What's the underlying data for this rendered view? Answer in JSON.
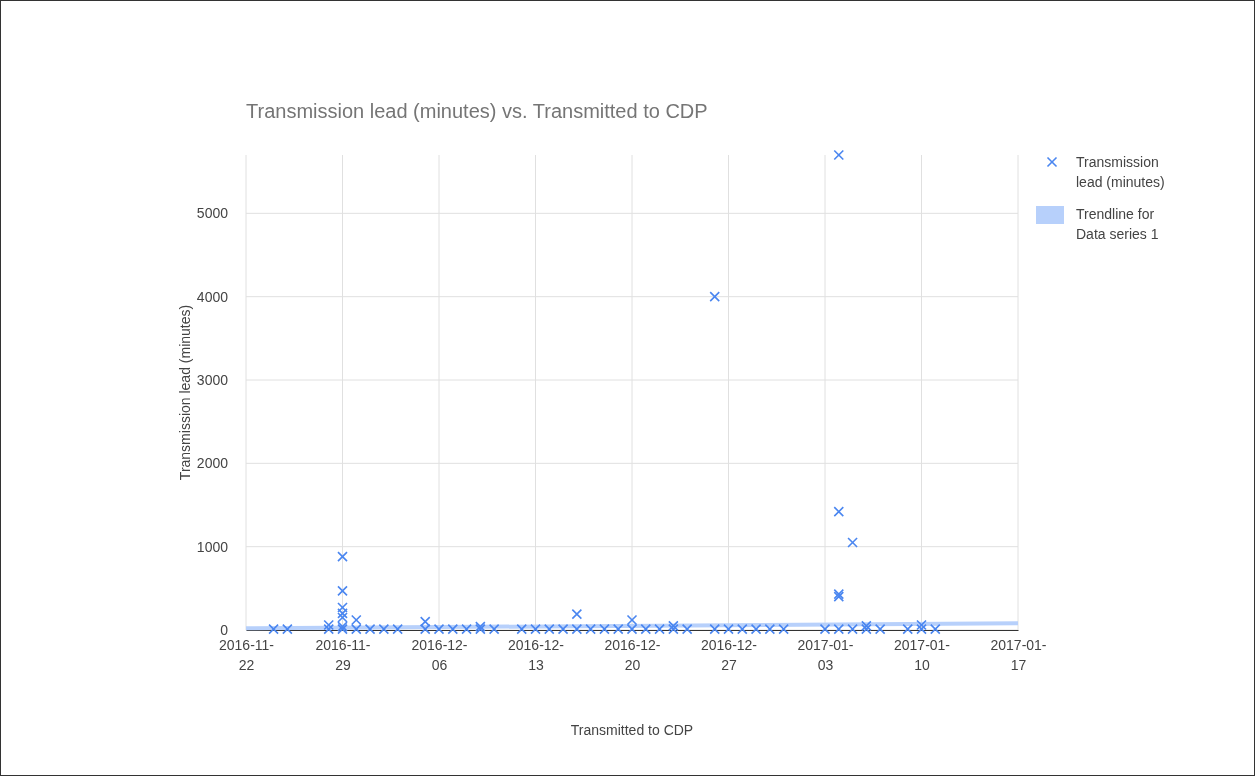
{
  "chart_data": {
    "type": "scatter",
    "title": "Transmission lead (minutes) vs. Transmitted to CDP",
    "xlabel": "Transmitted to CDP",
    "ylabel": "Transmission lead (minutes)",
    "xlim": [
      "2016-11-22",
      "2017-01-17"
    ],
    "xticks": [
      "2016-11-22",
      "2016-11-29",
      "2016-12-06",
      "2016-12-13",
      "2016-12-20",
      "2016-12-27",
      "2017-01-03",
      "2017-01-10",
      "2017-01-17"
    ],
    "ylim": [
      0,
      5700
    ],
    "yticks": [
      0,
      1000,
      2000,
      3000,
      4000,
      5000
    ],
    "grid": true,
    "legend": "right",
    "series": [
      {
        "name": "Transmission lead (minutes)",
        "color": "#4a86f0",
        "marker": "cross",
        "x": [
          "2016-11-24",
          "2016-11-25",
          "2016-11-28",
          "2016-11-28",
          "2016-11-29",
          "2016-11-29",
          "2016-11-29",
          "2016-11-29",
          "2016-11-29",
          "2016-11-29",
          "2016-11-29",
          "2016-11-30",
          "2016-11-30",
          "2016-12-01",
          "2016-12-02",
          "2016-12-03",
          "2016-12-05",
          "2016-12-05",
          "2016-12-06",
          "2016-12-07",
          "2016-12-08",
          "2016-12-09",
          "2016-12-09",
          "2016-12-10",
          "2016-12-12",
          "2016-12-13",
          "2016-12-14",
          "2016-12-15",
          "2016-12-16",
          "2016-12-16",
          "2016-12-17",
          "2016-12-18",
          "2016-12-19",
          "2016-12-20",
          "2016-12-20",
          "2016-12-21",
          "2016-12-22",
          "2016-12-23",
          "2016-12-23",
          "2016-12-24",
          "2016-12-26",
          "2016-12-26",
          "2016-12-27",
          "2016-12-28",
          "2016-12-29",
          "2016-12-30",
          "2016-12-31",
          "2017-01-03",
          "2017-01-04",
          "2017-01-04",
          "2017-01-04",
          "2017-01-04",
          "2017-01-04",
          "2017-01-05",
          "2017-01-05",
          "2017-01-06",
          "2017-01-06",
          "2017-01-07",
          "2017-01-09",
          "2017-01-10",
          "2017-01-10",
          "2017-01-11"
        ],
        "values": [
          10,
          10,
          10,
          60,
          10,
          40,
          150,
          200,
          270,
          470,
          880,
          10,
          120,
          10,
          10,
          10,
          10,
          100,
          10,
          10,
          10,
          10,
          40,
          10,
          10,
          10,
          10,
          10,
          10,
          190,
          10,
          10,
          10,
          10,
          120,
          10,
          10,
          10,
          50,
          10,
          10,
          4000,
          10,
          10,
          10,
          10,
          10,
          10,
          10,
          400,
          430,
          1420,
          5700,
          10,
          1050,
          10,
          50,
          10,
          10,
          10,
          60,
          10
        ]
      },
      {
        "name": "Trendline for Data series 1",
        "color": "#b7d0fb",
        "type": "line",
        "x": [
          "2016-11-22",
          "2017-01-17"
        ],
        "values": [
          20,
          80
        ]
      }
    ]
  }
}
